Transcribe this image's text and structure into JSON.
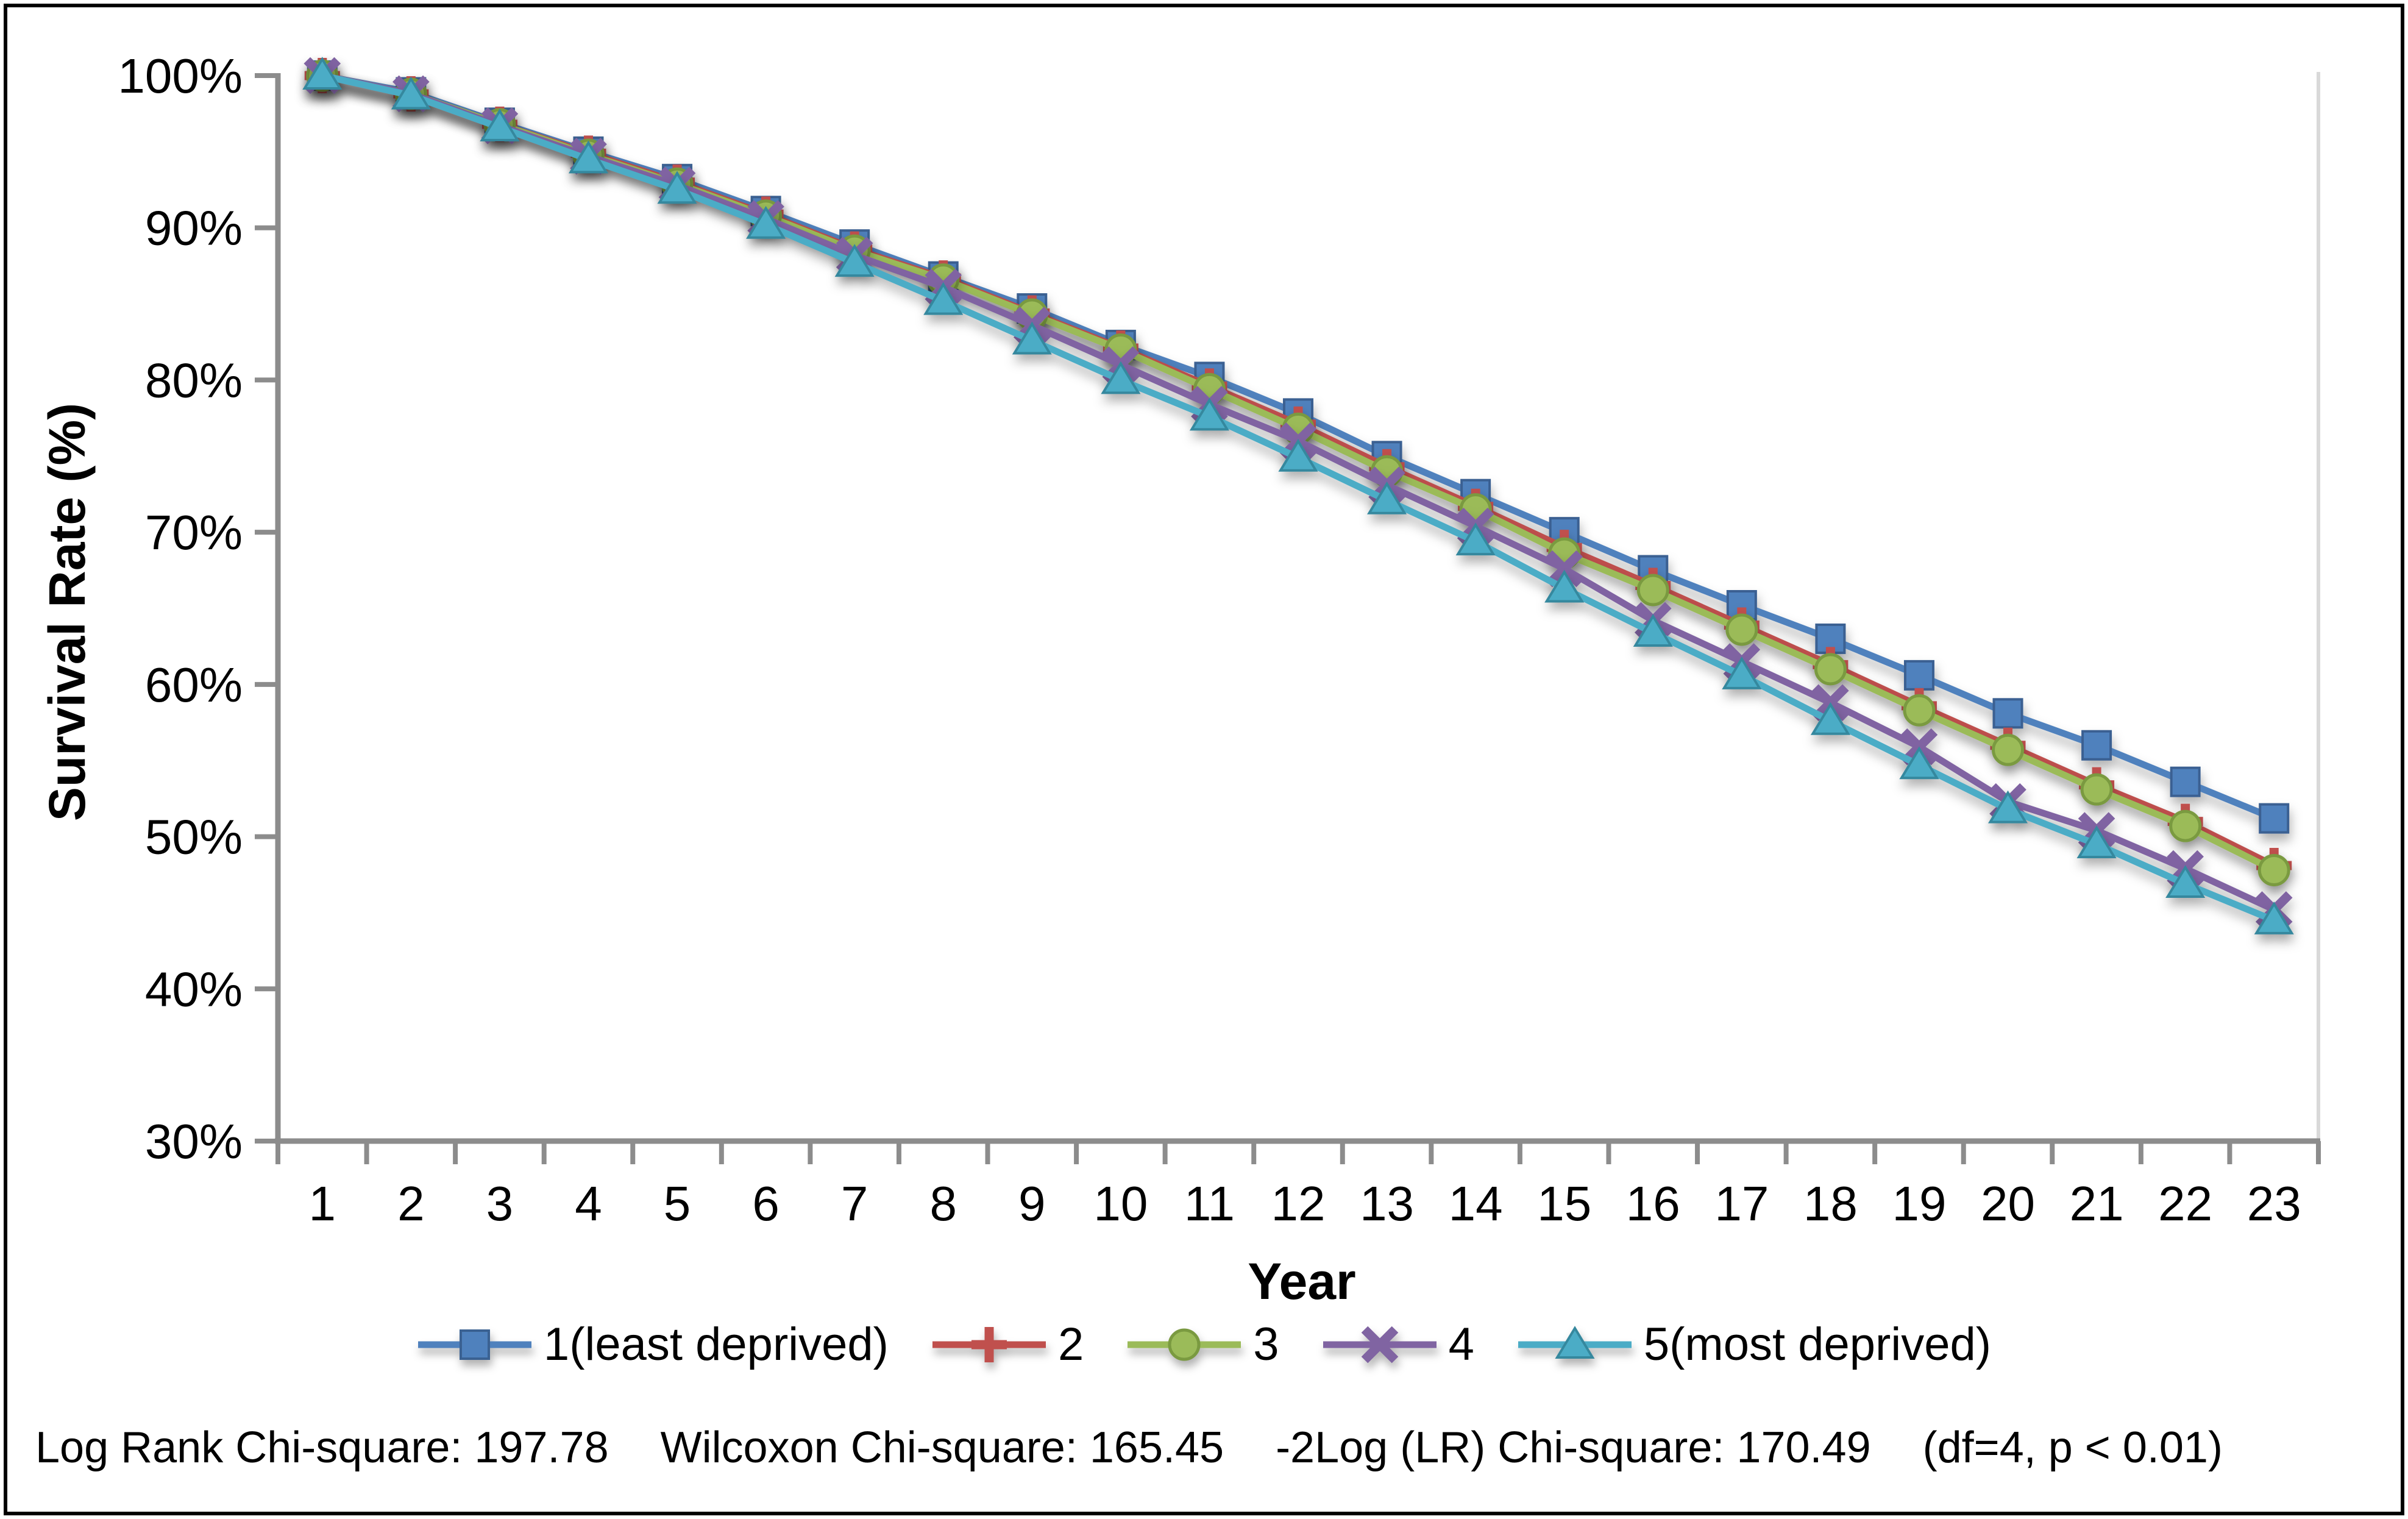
{
  "figure": {
    "background": "#ffffff",
    "border_color": "#000000"
  },
  "y_axis": {
    "title": "Survival Rate (%)",
    "tick_labels": [
      "100%",
      "90%",
      "80%",
      "70%",
      "60%",
      "50%",
      "40%",
      "30%"
    ],
    "tick_values": [
      100,
      90,
      80,
      70,
      60,
      50,
      40,
      30
    ],
    "min": 30,
    "max": 100,
    "axis_color": "#8c8c8c"
  },
  "x_axis": {
    "title": "Year",
    "categories": [
      "1",
      "2",
      "3",
      "4",
      "5",
      "6",
      "7",
      "8",
      "9",
      "10",
      "11",
      "12",
      "13",
      "14",
      "15",
      "16",
      "17",
      "18",
      "19",
      "20",
      "21",
      "22",
      "23"
    ],
    "axis_color": "#8c8c8c"
  },
  "legend": {
    "items": [
      {
        "label": "1(least deprived)",
        "color": "#4F81BD",
        "marker": "square"
      },
      {
        "label": "2",
        "color": "#C0504D",
        "marker": "plus"
      },
      {
        "label": "3",
        "color": "#9BBB59",
        "marker": "circle"
      },
      {
        "label": "4",
        "color": "#8064A2",
        "marker": "x"
      },
      {
        "label": "5(most deprived)",
        "color": "#4BACC6",
        "marker": "triangle"
      }
    ]
  },
  "stats": {
    "log_rank": "Log Rank Chi-square: 197.78",
    "wilcoxon": "Wilcoxon Chi-square: 165.45",
    "neg2log": "-2Log (LR) Chi-square: 170.49",
    "df_p": "(df=4, p < 0.01)"
  },
  "chart_data": {
    "type": "line",
    "title": "",
    "xlabel": "Year",
    "ylabel": "Survival Rate (%)",
    "x": [
      1,
      2,
      3,
      4,
      5,
      6,
      7,
      8,
      9,
      10,
      11,
      12,
      13,
      14,
      15,
      16,
      17,
      18,
      19,
      20,
      21,
      22,
      23
    ],
    "ylim": [
      30,
      100
    ],
    "grid": false,
    "legend_position": "bottom",
    "series": [
      {
        "name": "1(least deprived)",
        "color": "#4F81BD",
        "marker": "square",
        "values": [
          100,
          98.9,
          96.9,
          95.0,
          93.2,
          91.1,
          88.9,
          86.8,
          84.7,
          82.3,
          80.2,
          77.8,
          75.0,
          72.5,
          70.0,
          67.5,
          65.2,
          63.0,
          60.6,
          58.1,
          56.0,
          53.6,
          51.2
        ]
      },
      {
        "name": "2",
        "color": "#C0504D",
        "marker": "plus",
        "values": [
          100,
          98.8,
          96.8,
          94.9,
          93.0,
          90.9,
          88.6,
          86.7,
          84.4,
          82.1,
          79.6,
          77.1,
          74.3,
          71.7,
          69.0,
          66.5,
          63.9,
          61.3,
          58.6,
          56.0,
          53.4,
          51.0,
          48.1
        ]
      },
      {
        "name": "3",
        "color": "#9BBB59",
        "marker": "circle",
        "values": [
          100,
          98.8,
          96.8,
          94.8,
          92.9,
          90.8,
          88.5,
          86.6,
          84.3,
          82.0,
          79.4,
          76.8,
          74.0,
          71.5,
          68.6,
          66.2,
          63.6,
          61.0,
          58.3,
          55.7,
          53.1,
          50.7,
          47.8
        ]
      },
      {
        "name": "4",
        "color": "#8064A2",
        "marker": "x",
        "values": [
          100,
          98.8,
          96.7,
          94.7,
          92.8,
          90.6,
          88.2,
          86.1,
          83.6,
          81.0,
          78.4,
          76.0,
          73.1,
          70.4,
          67.6,
          64.2,
          61.5,
          58.8,
          55.9,
          52.3,
          50.4,
          47.9,
          45.2
        ]
      },
      {
        "name": "5(most deprived)",
        "color": "#4BACC6",
        "marker": "triangle",
        "values": [
          100,
          98.7,
          96.6,
          94.5,
          92.5,
          90.2,
          87.7,
          85.2,
          82.6,
          80.0,
          77.6,
          74.9,
          72.1,
          69.4,
          66.3,
          63.4,
          60.6,
          57.6,
          54.7,
          51.8,
          49.5,
          46.9,
          44.5
        ]
      }
    ]
  }
}
